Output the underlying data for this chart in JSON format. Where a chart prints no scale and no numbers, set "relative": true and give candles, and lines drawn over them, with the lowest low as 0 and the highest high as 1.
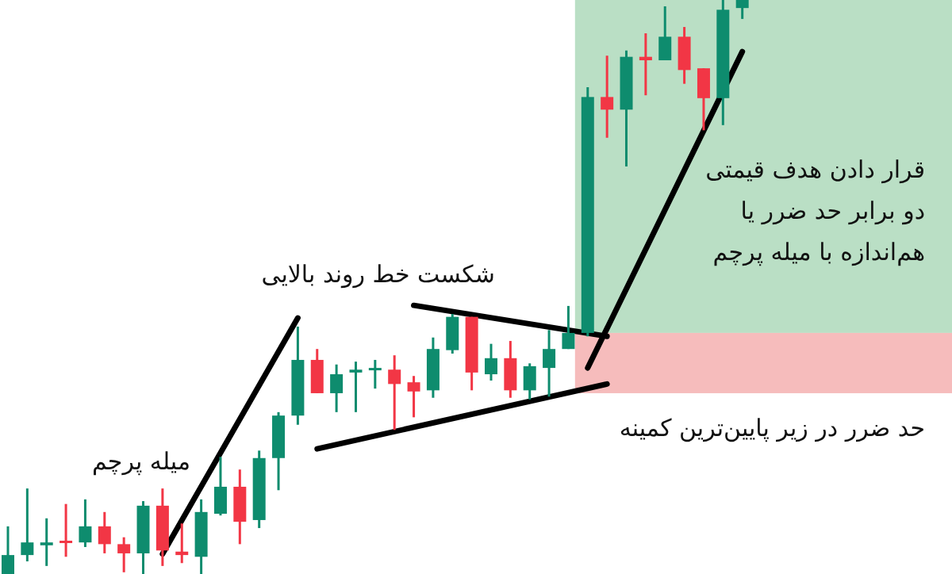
{
  "chart_data": {
    "type": "candlestick",
    "relative": true,
    "categories": [
      null,
      null,
      null,
      null,
      null,
      null,
      null,
      null,
      null,
      null,
      null,
      null,
      null,
      null,
      null,
      null,
      null,
      null,
      null,
      null,
      null,
      null,
      null,
      null,
      null,
      null,
      null,
      null,
      null,
      null,
      null,
      null,
      null,
      null,
      null,
      null,
      null,
      null,
      null
    ],
    "ohlc": [
      [
        0,
        0.083,
        0,
        0.033
      ],
      [
        0.033,
        0.149,
        0.022,
        0.055
      ],
      [
        0.05,
        0.097,
        0.014,
        0.055
      ],
      [
        0.058,
        0.122,
        0.03,
        0.055
      ],
      [
        0.055,
        0.13,
        0.047,
        0.083
      ],
      [
        0.083,
        0.108,
        0.036,
        0.052
      ],
      [
        0.052,
        0.064,
        0.003,
        0.036
      ],
      [
        0.036,
        0.127,
        0,
        0.119
      ],
      [
        0.119,
        0.149,
        0.014,
        0.041
      ],
      [
        0.039,
        0.088,
        0.019,
        0.033
      ],
      [
        0.03,
        0.13,
        0,
        0.108
      ],
      [
        0.105,
        0.204,
        0.102,
        0.152
      ],
      [
        0.152,
        0.182,
        0.052,
        0.091
      ],
      [
        0.094,
        0.215,
        0.08,
        0.202
      ],
      [
        0.202,
        0.282,
        0.146,
        0.276
      ],
      [
        0.276,
        0.431,
        0.26,
        0.373
      ],
      [
        0.373,
        0.392,
        0.315,
        0.315
      ],
      [
        0.315,
        0.365,
        0.282,
        0.348
      ],
      [
        0.351,
        0.37,
        0.282,
        0.356
      ],
      [
        0.356,
        0.373,
        0.323,
        0.359
      ],
      [
        0.356,
        0.381,
        0.251,
        0.331
      ],
      [
        0.334,
        0.345,
        0.273,
        0.318
      ],
      [
        0.32,
        0.412,
        0.307,
        0.392
      ],
      [
        0.39,
        0.453,
        0.384,
        0.448
      ],
      [
        0.448,
        0.448,
        0.32,
        0.351
      ],
      [
        0.348,
        0.401,
        0.337,
        0.376
      ],
      [
        0.376,
        0.406,
        0.307,
        0.32
      ],
      [
        0.32,
        0.367,
        0.304,
        0.362
      ],
      [
        0.359,
        0.425,
        0.309,
        0.392
      ],
      [
        0.392,
        0.467,
        0.392,
        0.42
      ],
      [
        0.42,
        0.848,
        0.414,
        0.831
      ],
      [
        0.831,
        0.903,
        0.76,
        0.809
      ],
      [
        0.809,
        0.912,
        0.71,
        0.901
      ],
      [
        0.901,
        0.942,
        0.834,
        0.895
      ],
      [
        0.895,
        0.989,
        0.895,
        0.936
      ],
      [
        0.936,
        0.953,
        0.854,
        0.878
      ],
      [
        0.881,
        0.881,
        0.773,
        0.829
      ],
      [
        0.829,
        1,
        0.782,
        0.983
      ],
      [
        0.986,
        1,
        0.967,
        1
      ]
    ],
    "colors": [
      "#0e8c6e",
      "#0e8c6e",
      "#0e8c6e",
      "#f23645",
      "#0e8c6e",
      "#f23645",
      "#f23645",
      "#0e8c6e",
      "#f23645",
      "#f23645",
      "#0e8c6e",
      "#0e8c6e",
      "#f23645",
      "#0e8c6e",
      "#0e8c6e",
      "#0e8c6e",
      "#f23645",
      "#0e8c6e",
      "#0e8c6e",
      "#0e8c6e",
      "#f23645",
      "#f23645",
      "#0e8c6e",
      "#0e8c6e",
      "#f23645",
      "#0e8c6e",
      "#f23645",
      "#0e8c6e",
      "#0e8c6e",
      "#0e8c6e",
      "#0e8c6e",
      "#f23645",
      "#0e8c6e",
      "#f23645",
      "#0e8c6e",
      "#f23645",
      "#f23645",
      "#0e8c6e",
      "#0e8c6e"
    ],
    "series": [
      {
        "type": "line",
        "color": "#000000",
        "values": [
          null,
          null,
          null,
          null,
          null,
          null,
          null,
          null,
          0.035,
          null,
          null,
          null,
          null,
          null,
          null,
          0.446,
          null,
          null,
          null,
          null,
          null,
          null,
          null,
          null,
          null,
          null,
          null,
          null,
          null,
          null,
          null,
          null,
          null,
          null,
          null,
          null,
          null,
          null,
          null
        ]
      },
      {
        "type": "line",
        "color": "#000000",
        "values": [
          null,
          null,
          null,
          null,
          null,
          null,
          null,
          null,
          null,
          null,
          null,
          null,
          null,
          null,
          null,
          null,
          null,
          null,
          null,
          null,
          null,
          0.468,
          null,
          null,
          null,
          null,
          null,
          null,
          null,
          null,
          null,
          0.414,
          null,
          null,
          null,
          null,
          null,
          null,
          null
        ]
      },
      {
        "type": "line",
        "color": "#000000",
        "values": [
          null,
          null,
          null,
          null,
          null,
          null,
          null,
          null,
          null,
          null,
          null,
          null,
          null,
          null,
          null,
          null,
          0.218,
          null,
          null,
          null,
          null,
          null,
          null,
          null,
          null,
          null,
          null,
          null,
          null,
          null,
          null,
          0.331,
          null,
          null,
          null,
          null,
          null,
          null,
          null
        ]
      },
      {
        "type": "line",
        "color": "#000000",
        "values": [
          null,
          null,
          null,
          null,
          null,
          null,
          null,
          null,
          null,
          null,
          null,
          null,
          null,
          null,
          null,
          null,
          null,
          null,
          null,
          null,
          null,
          null,
          null,
          null,
          null,
          null,
          null,
          null,
          null,
          null,
          0.359,
          null,
          null,
          null,
          null,
          null,
          null,
          null,
          0.91
        ]
      }
    ],
    "bands": [
      {
        "axis": "y",
        "from": 0.42,
        "to": 1,
        "color": "#badfc5",
        "label": "قرار دادن هدف قیمتی دو برابر حد ضرر یا هم‌اندازه با میله پرچم"
      },
      {
        "axis": "y",
        "from": 0.315,
        "to": 0.42,
        "color": "#f6bcbc",
        "label": "حد ضرر در زیر پایین‌ترین کمینه"
      }
    ],
    "annotations": [
      "میله پرچم",
      "شکست خط روند بالایی"
    ]
  }
}
